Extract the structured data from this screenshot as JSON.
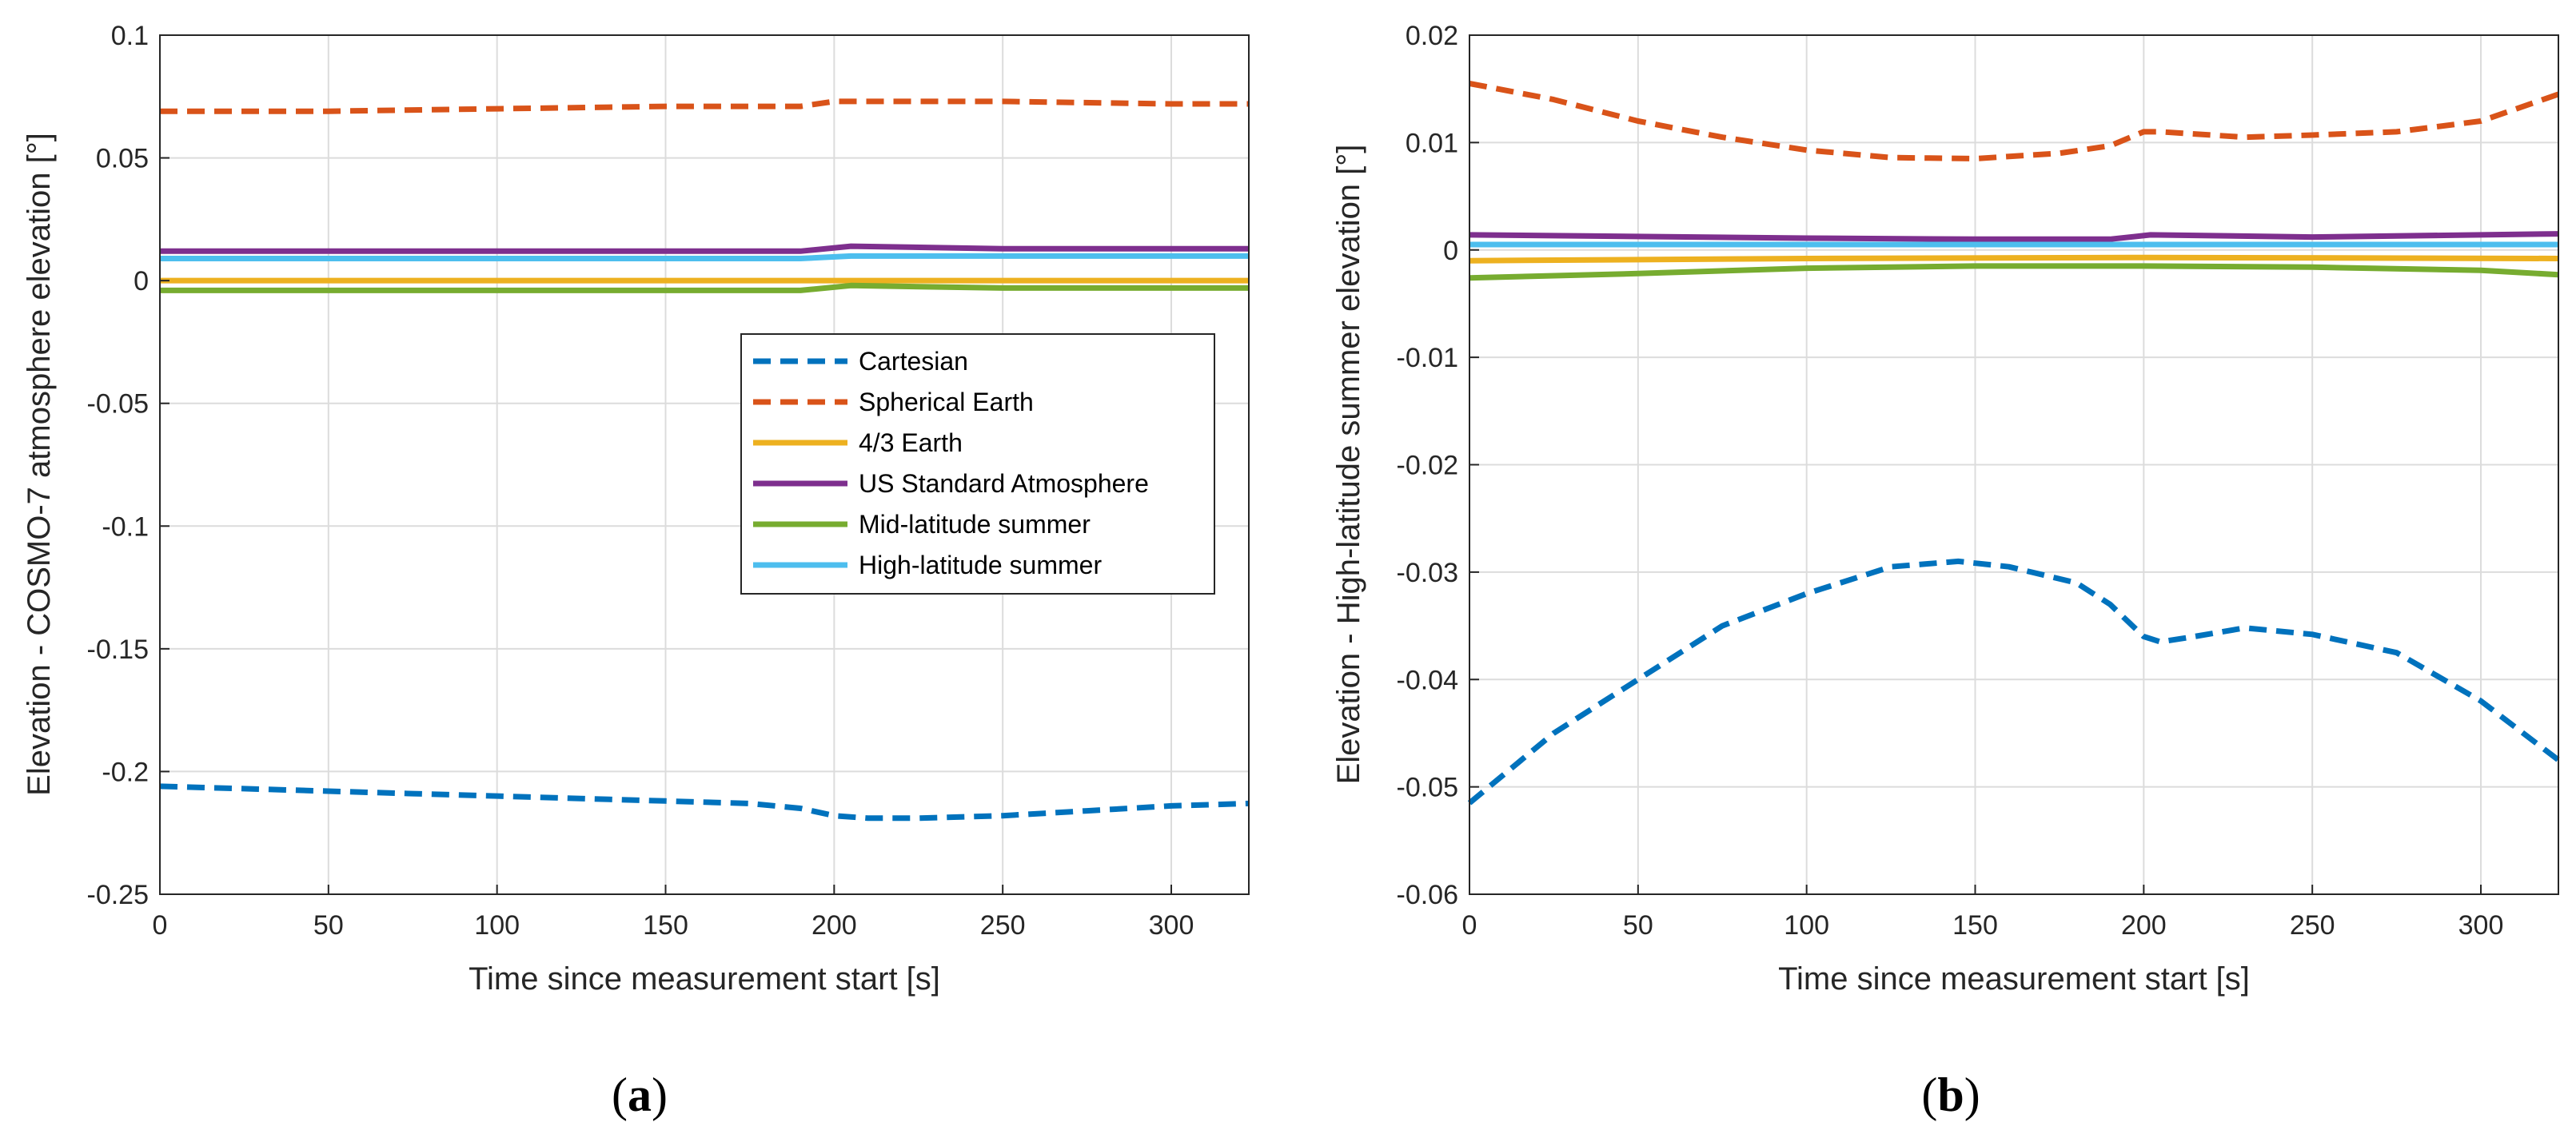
{
  "chart_data": [
    {
      "id": "a",
      "type": "line",
      "subfigure_label_open": "(",
      "subfigure_label_letter": "a",
      "subfigure_label_close": ")",
      "xlabel": "Time since measurement start [s]",
      "ylabel": "Elevation - COSMO-7 atmosphere elevation [°]",
      "xlim": [
        0,
        323
      ],
      "ylim": [
        -0.25,
        0.1
      ],
      "xticks": [
        0,
        50,
        100,
        150,
        200,
        250,
        300
      ],
      "xtick_labels": [
        "0",
        "50",
        "100",
        "150",
        "200",
        "250",
        "300"
      ],
      "yticks": [
        0.1,
        0.05,
        0,
        -0.05,
        -0.1,
        -0.15,
        -0.2,
        -0.25
      ],
      "ytick_labels": [
        "0.1",
        "0.05",
        "0",
        "-0.05",
        "-0.1",
        "-0.15",
        "-0.2",
        "-0.25"
      ],
      "grid": true,
      "legend_position": "center-right",
      "series": [
        {
          "name": "Cartesian",
          "color": "#0072BD",
          "style": "dashed",
          "x": [
            0,
            25,
            50,
            75,
            100,
            125,
            150,
            175,
            190,
            200,
            210,
            225,
            250,
            275,
            300,
            323
          ],
          "y": [
            -0.206,
            -0.207,
            -0.208,
            -0.209,
            -0.21,
            -0.211,
            -0.212,
            -0.213,
            -0.215,
            -0.218,
            -0.219,
            -0.219,
            -0.218,
            -0.216,
            -0.214,
            -0.213
          ]
        },
        {
          "name": "Spherical Earth",
          "color": "#D95319",
          "style": "dashed",
          "x": [
            0,
            50,
            100,
            150,
            190,
            200,
            210,
            250,
            300,
            323
          ],
          "y": [
            0.069,
            0.069,
            0.07,
            0.071,
            0.071,
            0.073,
            0.073,
            0.073,
            0.072,
            0.072
          ]
        },
        {
          "name": "4/3 Earth",
          "color": "#EDB120",
          "style": "solid",
          "x": [
            0,
            100,
            200,
            323
          ],
          "y": [
            0.0,
            0.0,
            0.0,
            0.0
          ]
        },
        {
          "name": "US Standard Atmosphere",
          "color": "#7E2F8E",
          "style": "solid",
          "x": [
            0,
            100,
            190,
            205,
            250,
            323
          ],
          "y": [
            0.012,
            0.012,
            0.012,
            0.014,
            0.013,
            0.013
          ]
        },
        {
          "name": "Mid-latitude summer",
          "color": "#77AC30",
          "style": "solid",
          "x": [
            0,
            100,
            190,
            205,
            250,
            323
          ],
          "y": [
            -0.004,
            -0.004,
            -0.004,
            -0.002,
            -0.003,
            -0.003
          ]
        },
        {
          "name": "High-latitude summer",
          "color": "#4DBEEE",
          "style": "solid",
          "x": [
            0,
            100,
            190,
            205,
            250,
            323
          ],
          "y": [
            0.009,
            0.009,
            0.009,
            0.01,
            0.01,
            0.01
          ]
        }
      ]
    },
    {
      "id": "b",
      "type": "line",
      "subfigure_label_open": "(",
      "subfigure_label_letter": "b",
      "subfigure_label_close": ")",
      "xlabel": "Time since measurement start [s]",
      "ylabel": "Elevation - High-latitude summer elevation [°]",
      "xlim": [
        0,
        323
      ],
      "ylim": [
        -0.06,
        0.02
      ],
      "xticks": [
        0,
        50,
        100,
        150,
        200,
        250,
        300
      ],
      "xtick_labels": [
        "0",
        "50",
        "100",
        "150",
        "200",
        "250",
        "300"
      ],
      "yticks": [
        0.02,
        0.01,
        0,
        -0.01,
        -0.02,
        -0.03,
        -0.04,
        -0.05,
        -0.06
      ],
      "ytick_labels": [
        "0.02",
        "0.01",
        "0",
        "-0.01",
        "-0.02",
        "-0.03",
        "-0.04",
        "-0.05",
        "-0.06"
      ],
      "grid": true,
      "legend_position": "none",
      "series": [
        {
          "name": "Cartesian",
          "color": "#0072BD",
          "style": "dashed",
          "x": [
            0,
            25,
            50,
            75,
            100,
            125,
            145,
            160,
            180,
            190,
            200,
            205,
            215,
            230,
            250,
            275,
            300,
            323
          ],
          "y": [
            -0.0515,
            -0.045,
            -0.04,
            -0.035,
            -0.032,
            -0.0295,
            -0.029,
            -0.0295,
            -0.031,
            -0.033,
            -0.036,
            -0.0365,
            -0.036,
            -0.0352,
            -0.0358,
            -0.0375,
            -0.042,
            -0.0475
          ]
        },
        {
          "name": "Spherical Earth",
          "color": "#D95319",
          "style": "dashed",
          "x": [
            0,
            25,
            50,
            75,
            100,
            125,
            150,
            175,
            190,
            200,
            205,
            230,
            250,
            275,
            300,
            323
          ],
          "y": [
            0.0155,
            0.014,
            0.012,
            0.0105,
            0.0093,
            0.0086,
            0.0085,
            0.009,
            0.0097,
            0.011,
            0.011,
            0.0105,
            0.0107,
            0.011,
            0.012,
            0.0145
          ]
        },
        {
          "name": "4/3 Earth",
          "color": "#EDB120",
          "style": "solid",
          "x": [
            0,
            100,
            200,
            323
          ],
          "y": [
            -0.001,
            -0.0008,
            -0.0007,
            -0.0008
          ]
        },
        {
          "name": "US Standard Atmosphere",
          "color": "#7E2F8E",
          "style": "solid",
          "x": [
            0,
            100,
            150,
            190,
            202,
            250,
            323
          ],
          "y": [
            0.0014,
            0.0011,
            0.001,
            0.001,
            0.0014,
            0.0012,
            0.0015
          ]
        },
        {
          "name": "Mid-latitude summer",
          "color": "#77AC30",
          "style": "solid",
          "x": [
            0,
            50,
            100,
            150,
            200,
            250,
            300,
            323
          ],
          "y": [
            -0.0026,
            -0.0022,
            -0.0017,
            -0.0015,
            -0.0015,
            -0.0016,
            -0.0019,
            -0.0023
          ]
        },
        {
          "name": "High-latitude summer",
          "color": "#4DBEEE",
          "style": "solid",
          "x": [
            0,
            100,
            200,
            323
          ],
          "y": [
            0.0005,
            0.0005,
            0.0005,
            0.0005
          ]
        }
      ]
    }
  ]
}
